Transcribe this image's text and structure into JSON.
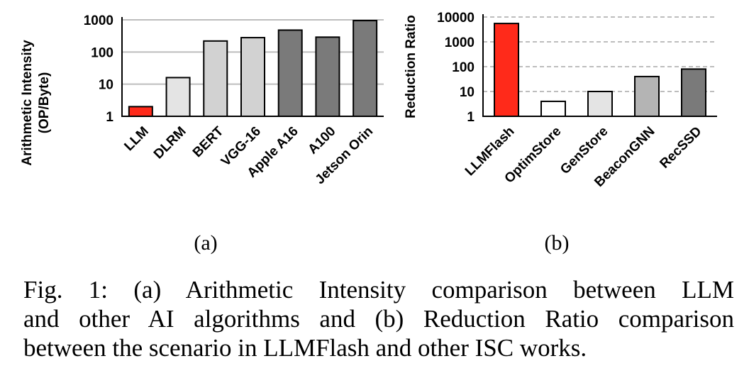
{
  "chart_data": [
    {
      "type": "bar",
      "ylabel_lines": [
        "Arithmetic Intensity",
        "(OP/Byte)"
      ],
      "categories": [
        "LLM",
        "DLRM",
        "BERT",
        "VGG-16",
        "Apple A16",
        "A100",
        "Jetson Orin"
      ],
      "values": [
        2,
        16,
        220,
        280,
        480,
        290,
        950
      ],
      "bar_colors": [
        "#ff2a1a",
        "#e4e4e4",
        "#d2d2d2",
        "#d2d2d2",
        "#7a7a7a",
        "#7a7a7a",
        "#7a7a7a"
      ],
      "yscale": "log",
      "ylim": [
        1,
        1000
      ],
      "yticks": [
        1,
        10,
        100,
        1000
      ],
      "ytick_labels": [
        "1",
        "10",
        "100",
        "1000"
      ],
      "grid": "solid-horizontal",
      "sublabel": "(a)"
    },
    {
      "type": "bar",
      "ylabel_lines": [
        "Reduction Ratio"
      ],
      "categories": [
        "LLMFlash",
        "OptimStore",
        "GenStore",
        "BeaconGNN",
        "RecSSD"
      ],
      "values": [
        5500,
        4,
        10,
        40,
        80
      ],
      "bar_colors": [
        "#ff2a1a",
        "#ffffff",
        "#e4e4e4",
        "#b4b4b4",
        "#7a7a7a"
      ],
      "yscale": "log",
      "ylim": [
        1,
        10000
      ],
      "yticks": [
        1,
        10,
        100,
        1000,
        10000
      ],
      "ytick_labels": [
        "1",
        "10",
        "100",
        "1000",
        "10000"
      ],
      "grid": "dashed-horizontal",
      "sublabel": "(b)"
    }
  ],
  "caption_lines": [
    "Fig. 1: (a) Arithmetic Intensity comparison between LLM",
    "and other AI algorithms and (b) Reduction Ratio comparison",
    "between the scenario in LLMFlash and other ISC works."
  ]
}
